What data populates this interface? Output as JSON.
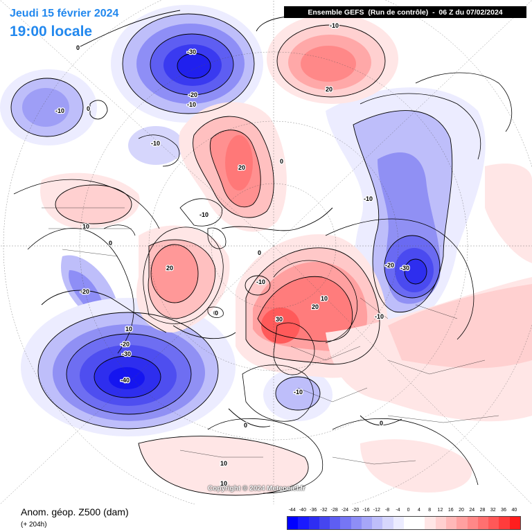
{
  "header": {
    "date_label": "Jeudi 15 février 2024",
    "time_label": "19:00 locale",
    "model_info": "Ensemble GEFS  (Run de contrôle)  -  06 Z du 07/02/2024"
  },
  "footer": {
    "variable_title": "Anom. géop. Z500 (dam)",
    "lead_time": "(+ 204h)",
    "copyright": "Copyright © 2024 Meteociel.fr"
  },
  "legend": {
    "ticks": [
      "-44",
      "-40",
      "-36",
      "-32",
      "-28",
      "-24",
      "-20",
      "-16",
      "-12",
      "-8",
      "-4",
      "0",
      "4",
      "8",
      "12",
      "16",
      "20",
      "24",
      "28",
      "32",
      "36",
      "40"
    ],
    "colors": [
      "#0000ff",
      "#1a1aff",
      "#2e2ef2",
      "#4646f0",
      "#5e5ef2",
      "#7676f4",
      "#8e8ef6",
      "#a6a6f8",
      "#bebefa",
      "#d6d6fc",
      "#ececff",
      "#ffffff",
      "#ffffff",
      "#ffe6e6",
      "#ffd0d0",
      "#ffb8b8",
      "#ffa0a0",
      "#ff8888",
      "#ff7070",
      "#ff5858",
      "#ff3c3c",
      "#ff1e1e"
    ]
  },
  "contour_labels": [
    {
      "text": "-30",
      "feature": "pacific-north-low"
    },
    {
      "text": "-20",
      "feature": "pacific-north-low"
    },
    {
      "text": "-10",
      "feature": "pacific-north-low"
    },
    {
      "text": "0",
      "feature": "pacific-north-low"
    },
    {
      "text": "-10",
      "feature": "west-pacific-low"
    },
    {
      "text": "0",
      "feature": "west-pacific-low"
    },
    {
      "text": "-10",
      "feature": "top-high"
    },
    {
      "text": "20",
      "feature": "top-high"
    },
    {
      "text": "-10",
      "feature": "bering-low"
    },
    {
      "text": "20",
      "feature": "arctic-high"
    },
    {
      "text": "-10",
      "feature": "arctic-high"
    },
    {
      "text": "0",
      "feature": "arctic-high"
    },
    {
      "text": "10",
      "feature": "north-america-ridge"
    },
    {
      "text": "0",
      "feature": "north-america-ridge"
    },
    {
      "text": "-20",
      "feature": "north-america-trough"
    },
    {
      "text": "20",
      "feature": "greenland-high"
    },
    {
      "text": "0",
      "feature": "greenland-high"
    },
    {
      "text": "-10",
      "feature": "greenland-low"
    },
    {
      "text": "0",
      "feature": "arctic-center"
    },
    {
      "text": "-10",
      "feature": "siberia-trough"
    },
    {
      "text": "-20",
      "feature": "siberia-low"
    },
    {
      "text": "-30",
      "feature": "siberia-low"
    },
    {
      "text": "-10",
      "feature": "siberia-low"
    },
    {
      "text": "30",
      "feature": "scandinavia-high"
    },
    {
      "text": "20",
      "feature": "scandinavia-high"
    },
    {
      "text": "10",
      "feature": "scandinavia-high"
    },
    {
      "text": "10",
      "feature": "atlantic-low"
    },
    {
      "text": "-20",
      "feature": "atlantic-low"
    },
    {
      "text": "-30",
      "feature": "atlantic-low"
    },
    {
      "text": "-40",
      "feature": "atlantic-low"
    },
    {
      "text": "-10",
      "feature": "europe-low"
    },
    {
      "text": "0",
      "feature": "europe-low"
    },
    {
      "text": "0",
      "feature": "south"
    },
    {
      "text": "10",
      "feature": "south"
    },
    {
      "text": "0",
      "feature": "south"
    },
    {
      "text": "10",
      "feature": "south"
    }
  ]
}
